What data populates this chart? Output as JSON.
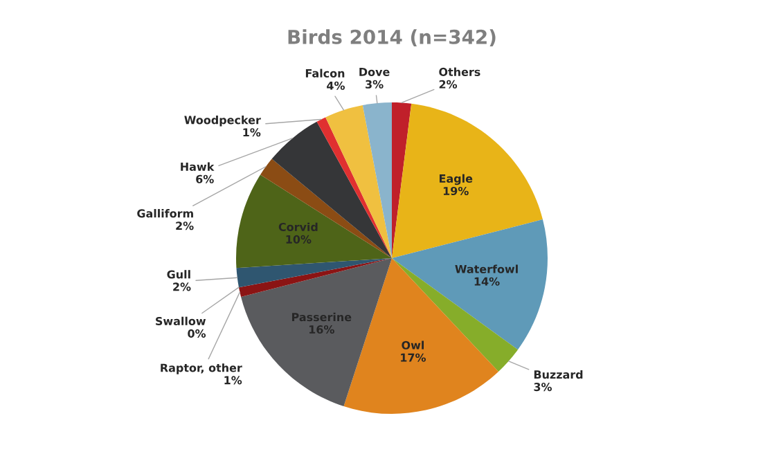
{
  "chart_data": {
    "type": "pie",
    "title": "Birds 2014 (n=342)",
    "categories": [
      "Others",
      "Eagle",
      "Waterfowl",
      "Buzzard",
      "Owl",
      "Passerine",
      "Raptor, other",
      "Swallow",
      "Gull",
      "Corvid",
      "Galliform",
      "Hawk",
      "Woodpecker",
      "Falcon",
      "Dove"
    ],
    "values": [
      2,
      19,
      14,
      3,
      17,
      16,
      1,
      0,
      2,
      10,
      2,
      6,
      1,
      4,
      3
    ],
    "value_labels": [
      "2%",
      "19%",
      "14%",
      "3%",
      "17%",
      "16%",
      "1%",
      "0%",
      "2%",
      "10%",
      "2%",
      "6%",
      "1%",
      "4%",
      "3%"
    ],
    "colors": [
      "#c0202a",
      "#e8b418",
      "#5f9ab8",
      "#86ad2a",
      "#e0841e",
      "#5a5b5e",
      "#8b1414",
      "#c8a000",
      "#2f5670",
      "#4e6418",
      "#8b4c14",
      "#353638",
      "#e03030",
      "#f0c040",
      "#8ab4cc"
    ]
  }
}
